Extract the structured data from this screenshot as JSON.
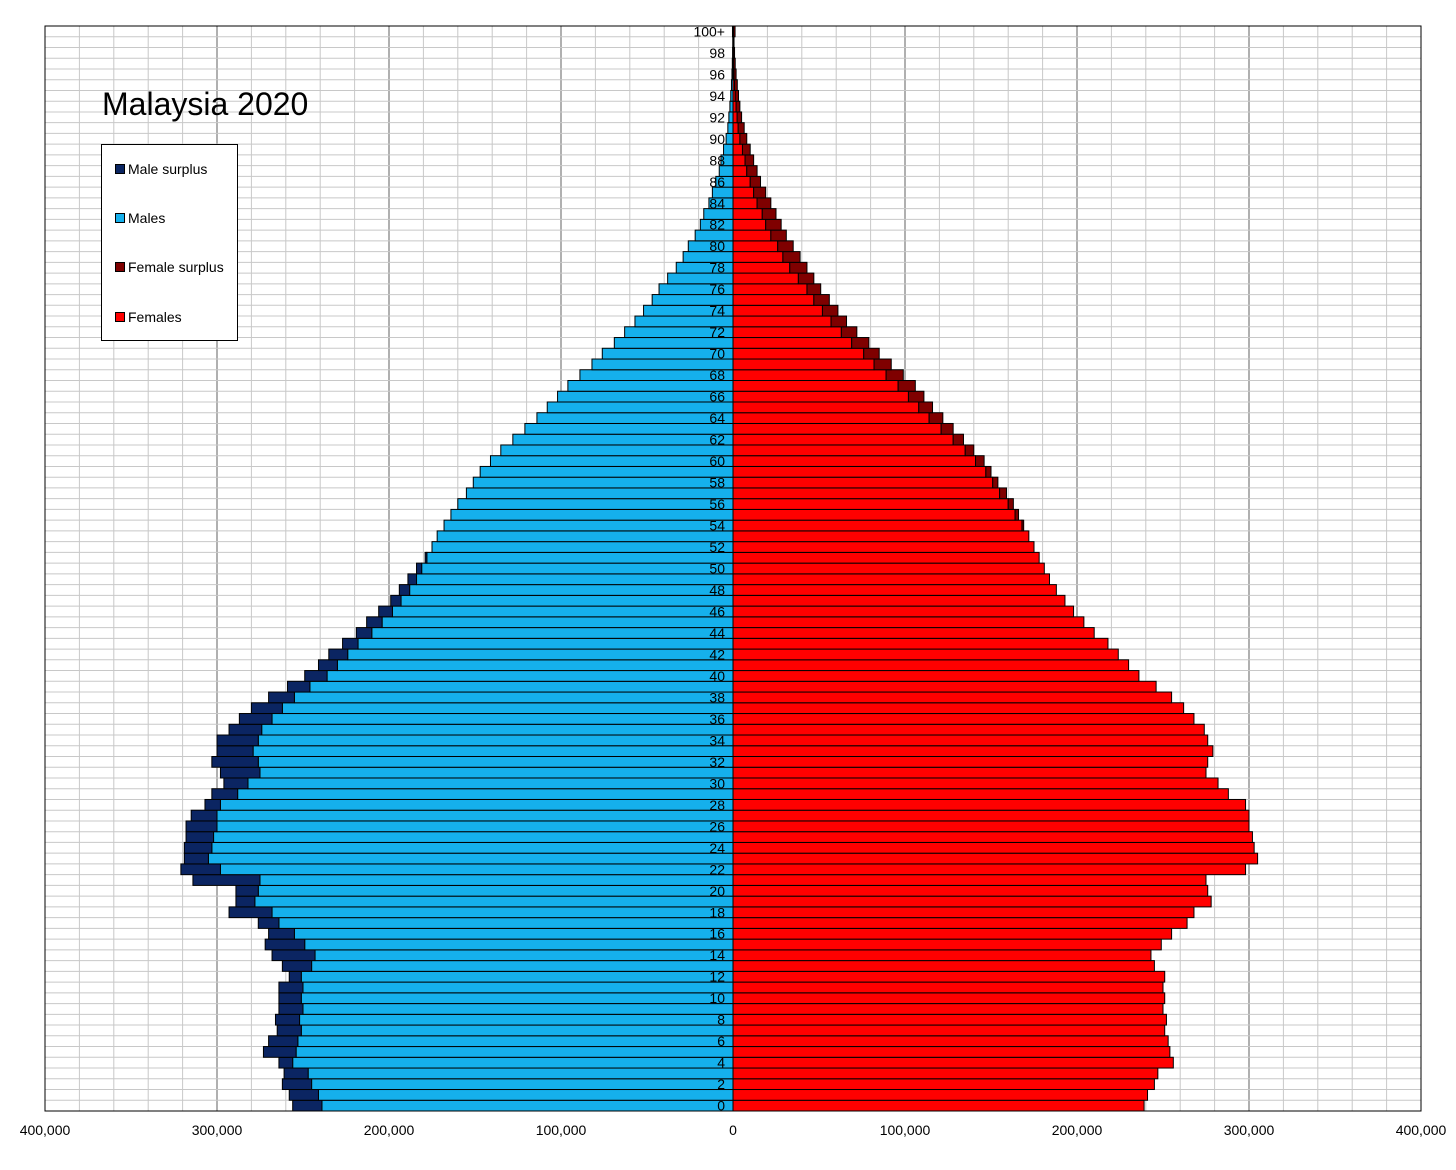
{
  "title": "Malaysia 2020",
  "legend": {
    "male_surplus": "Male surplus",
    "males": "Males",
    "female_surplus": "Female surplus",
    "females": "Females"
  },
  "colors": {
    "males": "#15B0EC",
    "male_surplus": "#0B2562",
    "females": "#FF0000",
    "female_surplus": "#7F0000",
    "grid_major": "#606060",
    "grid_minor": "#C8C8C8"
  },
  "chart_data": {
    "type": "bar",
    "orientation": "horizontal-population-pyramid",
    "x_tick_labels": [
      "400,000",
      "300,000",
      "200,000",
      "100,000",
      "0",
      "100,000",
      "200,000",
      "300,000",
      "400,000"
    ],
    "xlim": [
      -400000,
      400000
    ],
    "age_labels": [
      "0",
      "2",
      "4",
      "6",
      "8",
      "10",
      "12",
      "14",
      "16",
      "18",
      "20",
      "22",
      "24",
      "26",
      "28",
      "30",
      "32",
      "34",
      "36",
      "38",
      "40",
      "42",
      "44",
      "46",
      "48",
      "50",
      "52",
      "54",
      "56",
      "58",
      "60",
      "62",
      "64",
      "66",
      "68",
      "70",
      "72",
      "74",
      "76",
      "78",
      "80",
      "82",
      "84",
      "86",
      "88",
      "90",
      "92",
      "94",
      "96",
      "98",
      "100+"
    ],
    "categories": [
      "0",
      "1",
      "2",
      "3",
      "4",
      "5",
      "6",
      "7",
      "8",
      "9",
      "10",
      "11",
      "12",
      "13",
      "14",
      "15",
      "16",
      "17",
      "18",
      "19",
      "20",
      "21",
      "22",
      "23",
      "24",
      "25",
      "26",
      "27",
      "28",
      "29",
      "30",
      "31",
      "32",
      "33",
      "34",
      "35",
      "36",
      "37",
      "38",
      "39",
      "40",
      "41",
      "42",
      "43",
      "44",
      "45",
      "46",
      "47",
      "48",
      "49",
      "50",
      "51",
      "52",
      "53",
      "54",
      "55",
      "56",
      "57",
      "58",
      "59",
      "60",
      "61",
      "62",
      "63",
      "64",
      "65",
      "66",
      "67",
      "68",
      "69",
      "70",
      "71",
      "72",
      "73",
      "74",
      "75",
      "76",
      "77",
      "78",
      "79",
      "80",
      "81",
      "82",
      "83",
      "84",
      "85",
      "86",
      "87",
      "88",
      "89",
      "90",
      "91",
      "92",
      "93",
      "94",
      "95",
      "96",
      "97",
      "98",
      "99",
      "100+"
    ],
    "series": [
      {
        "name": "Males",
        "values": [
          256000,
          258000,
          262000,
          261000,
          264000,
          273000,
          270000,
          265000,
          266000,
          264000,
          264000,
          264000,
          258000,
          262000,
          268000,
          272000,
          270000,
          276000,
          293000,
          289000,
          289000,
          314000,
          321000,
          319000,
          319000,
          318000,
          318000,
          315000,
          307000,
          303000,
          296000,
          298000,
          303000,
          300000,
          300000,
          293000,
          287000,
          280000,
          270000,
          259000,
          249000,
          241000,
          235000,
          227000,
          219000,
          213000,
          206000,
          199000,
          194000,
          189000,
          184000,
          179000,
          175000,
          172000,
          168000,
          164000,
          160000,
          155000,
          151000,
          147000,
          141000,
          135000,
          128000,
          121000,
          114000,
          108000,
          102000,
          96000,
          89000,
          82000,
          76000,
          69000,
          63000,
          57000,
          52000,
          47000,
          43000,
          38000,
          33000,
          29000,
          26000,
          22000,
          19000,
          17000,
          14000,
          12000,
          10000,
          8000,
          7000,
          5500,
          4000,
          3000,
          2400,
          1800,
          1300,
          900,
          600,
          400,
          250,
          150,
          300
        ]
      },
      {
        "name": "Females",
        "values": [
          239000,
          241000,
          245000,
          247000,
          256000,
          254000,
          253000,
          251000,
          252000,
          250000,
          251000,
          250000,
          251000,
          245000,
          243000,
          249000,
          255000,
          264000,
          268000,
          278000,
          276000,
          275000,
          298000,
          305000,
          303000,
          302000,
          300000,
          300000,
          298000,
          288000,
          282000,
          275000,
          276000,
          279000,
          276000,
          274000,
          268000,
          262000,
          255000,
          246000,
          236000,
          230000,
          224000,
          218000,
          210000,
          204000,
          198000,
          193000,
          188000,
          184000,
          181000,
          178000,
          175000,
          172000,
          169000,
          166000,
          163000,
          159000,
          154000,
          150000,
          146000,
          140000,
          134000,
          128000,
          122000,
          116000,
          111000,
          106000,
          99000,
          92000,
          85000,
          79000,
          72000,
          66000,
          61000,
          56000,
          51000,
          47000,
          43000,
          39000,
          35000,
          31000,
          28000,
          25000,
          22000,
          19000,
          16000,
          14000,
          12000,
          10000,
          8000,
          6500,
          5000,
          4000,
          3200,
          2500,
          1800,
          1300,
          900,
          600,
          1200
        ]
      }
    ],
    "legend_position": "top-left",
    "grid": true
  }
}
